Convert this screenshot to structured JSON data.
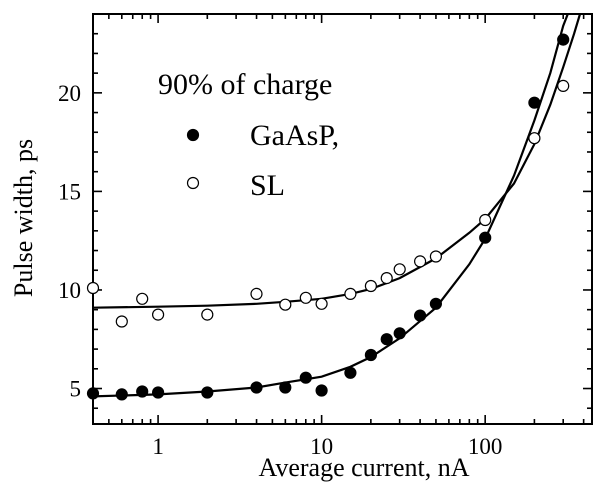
{
  "chart_data": {
    "type": "scatter",
    "xscale": "log",
    "xlim": [
      0.4,
      450
    ],
    "ylim": [
      3.2,
      24.0
    ],
    "xlabel": "Average current,  nA",
    "ylabel": "Pulse width,  ps",
    "grid": false,
    "legend_position": "top-left",
    "legend_title": "90% of charge",
    "x_ticks": [
      1,
      10,
      100
    ],
    "x_tick_labels": [
      "1",
      "10",
      "100"
    ],
    "y_ticks": [
      5,
      10,
      15,
      20
    ],
    "y_tick_labels": [
      "5",
      "10",
      "15",
      "20"
    ],
    "series": [
      {
        "name": "GaAsP,",
        "marker": "filled-circle",
        "points": [
          [
            0.4,
            4.75
          ],
          [
            0.6,
            4.7
          ],
          [
            0.8,
            4.85
          ],
          [
            1.0,
            4.8
          ],
          [
            2.0,
            4.8
          ],
          [
            4.0,
            5.05
          ],
          [
            6.0,
            5.05
          ],
          [
            8.0,
            5.55
          ],
          [
            10.0,
            4.9
          ],
          [
            15.0,
            5.8
          ],
          [
            20.0,
            6.7
          ],
          [
            25.0,
            7.5
          ],
          [
            30.0,
            7.8
          ],
          [
            40.0,
            8.7
          ],
          [
            50.0,
            9.3
          ],
          [
            100.0,
            12.65
          ],
          [
            200.0,
            19.5
          ],
          [
            300.0,
            22.7
          ]
        ],
        "fit_curve": [
          [
            0.4,
            4.6
          ],
          [
            1,
            4.7
          ],
          [
            2,
            4.85
          ],
          [
            4,
            5.05
          ],
          [
            6,
            5.3
          ],
          [
            10,
            5.6
          ],
          [
            15,
            6.1
          ],
          [
            20,
            6.6
          ],
          [
            30,
            7.55
          ],
          [
            50,
            9.1
          ],
          [
            80,
            11.3
          ],
          [
            100,
            12.6
          ],
          [
            150,
            15.8
          ],
          [
            200,
            18.6
          ],
          [
            250,
            21.0
          ],
          [
            300,
            23.4
          ],
          [
            320,
            24.0
          ]
        ]
      },
      {
        "name": "SL",
        "marker": "open-circle",
        "points": [
          [
            0.4,
            10.1
          ],
          [
            0.6,
            8.4
          ],
          [
            0.8,
            9.55
          ],
          [
            1.0,
            8.75
          ],
          [
            2.0,
            8.75
          ],
          [
            4.0,
            9.8
          ],
          [
            6.0,
            9.25
          ],
          [
            8.0,
            9.6
          ],
          [
            10.0,
            9.3
          ],
          [
            15.0,
            9.8
          ],
          [
            20.0,
            10.2
          ],
          [
            25.0,
            10.6
          ],
          [
            30.0,
            11.05
          ],
          [
            40.0,
            11.45
          ],
          [
            50.0,
            11.7
          ],
          [
            100.0,
            13.55
          ],
          [
            200.0,
            17.7
          ],
          [
            300.0,
            20.35
          ]
        ],
        "fit_curve": [
          [
            0.4,
            9.1
          ],
          [
            1,
            9.15
          ],
          [
            2,
            9.2
          ],
          [
            4,
            9.3
          ],
          [
            6,
            9.4
          ],
          [
            10,
            9.55
          ],
          [
            15,
            9.8
          ],
          [
            20,
            10.05
          ],
          [
            30,
            10.6
          ],
          [
            50,
            11.6
          ],
          [
            80,
            12.9
          ],
          [
            100,
            13.6
          ],
          [
            150,
            15.4
          ],
          [
            200,
            17.4
          ],
          [
            250,
            19.4
          ],
          [
            300,
            21.3
          ],
          [
            350,
            23.0
          ],
          [
            380,
            24.0
          ]
        ]
      }
    ]
  }
}
